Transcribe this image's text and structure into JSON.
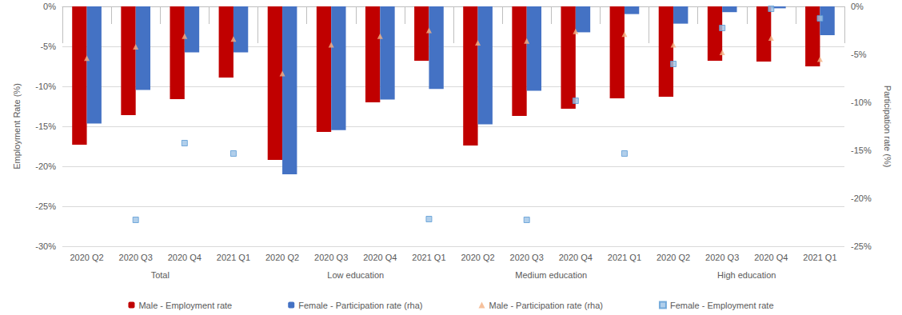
{
  "chart_data": {
    "type": "bar",
    "categories": [
      "2020 Q2",
      "2020 Q3",
      "2020 Q4",
      "2021 Q1",
      "2020 Q2",
      "2020 Q3",
      "2020 Q4",
      "2021 Q1",
      "2020 Q2",
      "2020 Q3",
      "2020 Q4",
      "2021 Q1",
      "2020 Q2",
      "2020 Q3",
      "2020 Q4",
      "2021 Q1"
    ],
    "groups": [
      "Total",
      "Total",
      "Total",
      "Total",
      "Low education",
      "Low education",
      "Low education",
      "Low education",
      "Medium education",
      "Medium education",
      "Medium education",
      "Medium education",
      "High education",
      "High education",
      "High education",
      "High education"
    ],
    "y_label": "Employment Rate (%)",
    "y2_label": "Participation rate (%)",
    "ylim": [
      -30,
      0
    ],
    "yticks": [
      {
        "value": -30,
        "label": "-30%"
      },
      {
        "value": -25,
        "label": "-25%"
      },
      {
        "value": -20,
        "label": "-20%"
      },
      {
        "value": -15,
        "label": "-15%"
      },
      {
        "value": -10,
        "label": "-10%"
      },
      {
        "value": -5,
        "label": "-5%"
      },
      {
        "value": 0,
        "label": "0%"
      }
    ],
    "y2lim": [
      -25,
      0
    ],
    "y2ticks": [
      {
        "value": -25,
        "label": "-25%"
      },
      {
        "value": -20,
        "label": "-20%"
      },
      {
        "value": -15,
        "label": "-15%"
      },
      {
        "value": -10,
        "label": "-10%"
      },
      {
        "value": -5,
        "label": "-5%"
      },
      {
        "value": 0,
        "label": "0%"
      }
    ],
    "grid": true,
    "legend": "bottom",
    "series": [
      {
        "name": "Male - Employment rate",
        "type": "bar",
        "color": "#c00000",
        "values": [
          -17.3,
          -13.6,
          -11.6,
          -8.9,
          -19.2,
          -15.7,
          -12.0,
          -6.8,
          -17.4,
          -13.7,
          -12.8,
          -11.5,
          -11.3,
          -6.8,
          -6.9,
          -7.5
        ]
      },
      {
        "name": "Female - Participation rate (rha)",
        "type": "bar",
        "color": "#4472c4",
        "axis": "y2",
        "values": [
          -12.2,
          -8.7,
          -4.8,
          -4.8,
          -17.5,
          -12.9,
          -9.7,
          -8.6,
          -12.3,
          -8.8,
          -2.7,
          -0.8,
          -1.8,
          -0.6,
          -0.2,
          -3.0
        ]
      },
      {
        "name": "Male - Participation rate (rha)",
        "type": "scatter",
        "marker": "triangle",
        "color": "#f4b183",
        "axis": "y2",
        "values": [
          -5.4,
          -4.2,
          -3.1,
          -3.4,
          -7.0,
          -4.0,
          -3.1,
          -2.5,
          -3.8,
          -3.6,
          -2.6,
          -2.9,
          -4.0,
          -4.8,
          -3.3,
          -5.5
        ]
      },
      {
        "name": "Female - Employment rate",
        "type": "scatter",
        "marker": "square",
        "color": "#9dc3e6",
        "values": [
          null,
          -26.7,
          -17.1,
          -18.4,
          null,
          null,
          null,
          -26.6,
          null,
          -26.7,
          -11.8,
          -18.4,
          -7.2,
          -2.7,
          -0.3,
          -1.5
        ]
      }
    ]
  }
}
